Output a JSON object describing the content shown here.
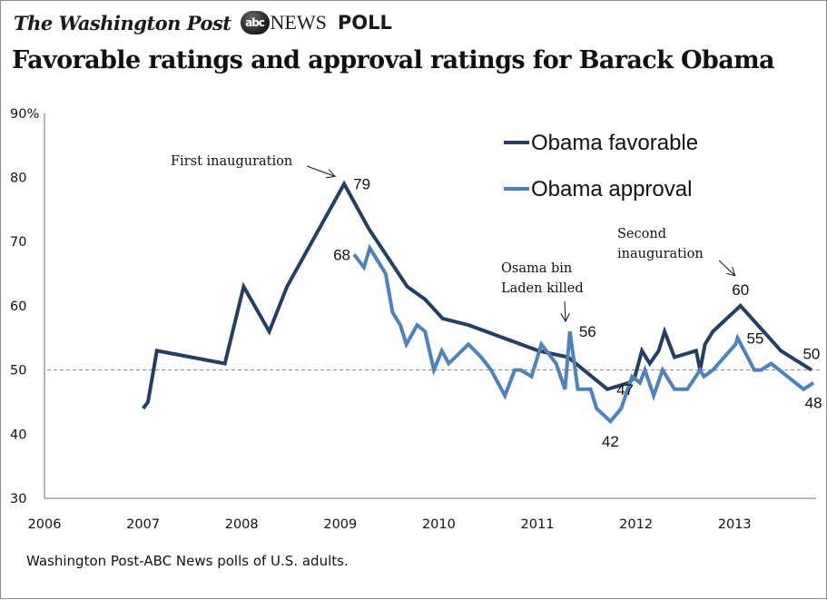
{
  "header": {
    "publisher": "The Washington Post",
    "partner_logo": "abc",
    "partner_name": "NEWS",
    "poll_label": "POLL",
    "title": "Favorable ratings and approval ratings for Barack Obama"
  },
  "footer": {
    "source": "Washington Post-ABC News polls of U.S. adults."
  },
  "chart_data": {
    "type": "line",
    "title": "Favorable ratings and approval ratings for Barack Obama",
    "xlabel": "",
    "ylabel": "",
    "xlim": [
      2006,
      2013.9
    ],
    "ylim": [
      30,
      90
    ],
    "x_ticks": [
      2006,
      2007,
      2008,
      2009,
      2010,
      2011,
      2012,
      2013
    ],
    "x_tick_labels": [
      "2006",
      "2007",
      "2008",
      "2009",
      "2010",
      "2011",
      "2012",
      "2013"
    ],
    "y_ticks": [
      30,
      40,
      50,
      60,
      70,
      80,
      90
    ],
    "y_tick_labels": [
      "30",
      "40",
      "50",
      "60",
      "70",
      "80",
      "90%"
    ],
    "grid": false,
    "reference_line": {
      "value": 50,
      "style": "dashed",
      "color": "#808080"
    },
    "legend": {
      "placement": "top-right"
    },
    "series": [
      {
        "name": "Obama favorable",
        "color": "#243F60",
        "points": [
          [
            2007.0,
            44
          ],
          [
            2007.05,
            45
          ],
          [
            2007.14,
            53
          ],
          [
            2007.83,
            51
          ],
          [
            2008.02,
            63
          ],
          [
            2008.28,
            56
          ],
          [
            2008.46,
            63
          ],
          [
            2009.04,
            79
          ],
          [
            2009.29,
            72
          ],
          [
            2009.68,
            63
          ],
          [
            2009.86,
            61
          ],
          [
            2010.04,
            58
          ],
          [
            2010.3,
            57
          ],
          [
            2011.01,
            53
          ],
          [
            2011.31,
            52
          ],
          [
            2011.71,
            47
          ],
          [
            2011.93,
            48
          ],
          [
            2011.99,
            49
          ],
          [
            2012.06,
            53
          ],
          [
            2012.14,
            51
          ],
          [
            2012.23,
            53
          ],
          [
            2012.29,
            56
          ],
          [
            2012.39,
            52
          ],
          [
            2012.61,
            53
          ],
          [
            2012.65,
            50
          ],
          [
            2012.7,
            54
          ],
          [
            2012.78,
            56
          ],
          [
            2013.06,
            60
          ],
          [
            2013.47,
            53
          ],
          [
            2013.78,
            50
          ]
        ]
      },
      {
        "name": "Obama approval",
        "color": "#4F81BD",
        "points": [
          [
            2009.14,
            68
          ],
          [
            2009.24,
            66
          ],
          [
            2009.3,
            69
          ],
          [
            2009.46,
            65
          ],
          [
            2009.53,
            59
          ],
          [
            2009.61,
            57
          ],
          [
            2009.67,
            54
          ],
          [
            2009.78,
            57
          ],
          [
            2009.86,
            56
          ],
          [
            2009.95,
            50
          ],
          [
            2010.03,
            53
          ],
          [
            2010.1,
            51
          ],
          [
            2010.3,
            54
          ],
          [
            2010.43,
            52
          ],
          [
            2010.53,
            50
          ],
          [
            2010.67,
            46
          ],
          [
            2010.77,
            50
          ],
          [
            2010.83,
            50
          ],
          [
            2010.94,
            49
          ],
          [
            2011.04,
            54
          ],
          [
            2011.19,
            51
          ],
          [
            2011.28,
            47
          ],
          [
            2011.33,
            56
          ],
          [
            2011.41,
            47
          ],
          [
            2011.54,
            47
          ],
          [
            2011.6,
            44
          ],
          [
            2011.74,
            42
          ],
          [
            2011.85,
            44
          ],
          [
            2011.96,
            49
          ],
          [
            2012.04,
            48
          ],
          [
            2012.09,
            50
          ],
          [
            2012.18,
            46
          ],
          [
            2012.27,
            50
          ],
          [
            2012.39,
            47
          ],
          [
            2012.52,
            47
          ],
          [
            2012.65,
            50
          ],
          [
            2012.69,
            49
          ],
          [
            2012.78,
            50
          ],
          [
            2013.01,
            54
          ],
          [
            2013.03,
            55
          ],
          [
            2013.2,
            50
          ],
          [
            2013.27,
            50
          ],
          [
            2013.37,
            51
          ],
          [
            2013.7,
            47
          ],
          [
            2013.8,
            48
          ]
        ]
      }
    ],
    "data_labels": [
      {
        "series": "Obama favorable",
        "x": 2009.04,
        "value": 79,
        "text": "79",
        "side": "right"
      },
      {
        "series": "Obama approval",
        "x": 2009.14,
        "value": 68,
        "text": "68",
        "side": "left"
      },
      {
        "series": "Obama approval",
        "x": 2011.33,
        "value": 56,
        "text": "56",
        "side": "right"
      },
      {
        "series": "Obama favorable",
        "x": 2011.71,
        "value": 47,
        "text": "47",
        "side": "right"
      },
      {
        "series": "Obama approval",
        "x": 2011.74,
        "value": 42,
        "text": "42",
        "side": "below"
      },
      {
        "series": "Obama favorable",
        "x": 2013.06,
        "value": 60,
        "text": "60",
        "side": "above"
      },
      {
        "series": "Obama approval",
        "x": 2013.03,
        "value": 55,
        "text": "55",
        "side": "right"
      },
      {
        "series": "Obama favorable",
        "x": 2013.78,
        "value": 50,
        "text": "50",
        "side": "above"
      },
      {
        "series": "Obama approval",
        "x": 2013.8,
        "value": 48,
        "text": "48",
        "side": "below"
      }
    ],
    "annotations": [
      {
        "text": "First inauguration",
        "lines": [
          "First inauguration"
        ],
        "target_x": 2009.04,
        "target_value": 79
      },
      {
        "text": "Osama bin Laden killed",
        "lines": [
          "Osama bin",
          "Laden killed"
        ],
        "target_x": 2011.33,
        "target_value": 56
      },
      {
        "text": "Second inauguration",
        "lines": [
          "Second",
          "inauguration"
        ],
        "target_x": 2013.06,
        "target_value": 60
      }
    ]
  }
}
